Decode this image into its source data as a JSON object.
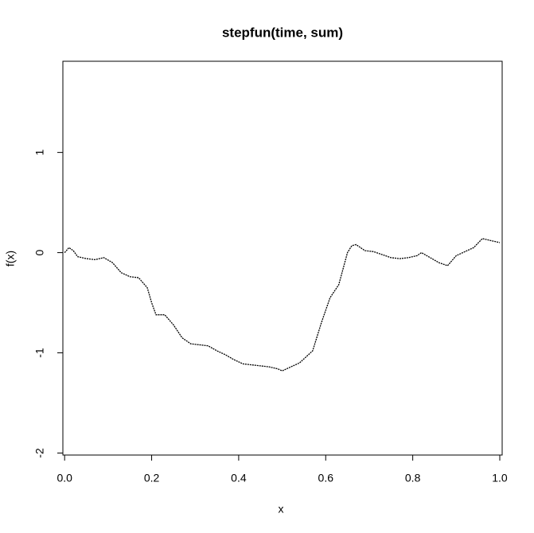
{
  "chart_data": {
    "type": "line",
    "title": "stepfun(time, sum)",
    "x_label": "x",
    "y_label": "f(x)",
    "x": [
      0.0,
      0.01,
      0.02,
      0.03,
      0.05,
      0.07,
      0.09,
      0.11,
      0.13,
      0.15,
      0.17,
      0.19,
      0.2,
      0.21,
      0.23,
      0.25,
      0.27,
      0.29,
      0.31,
      0.33,
      0.35,
      0.37,
      0.39,
      0.41,
      0.43,
      0.45,
      0.47,
      0.49,
      0.5,
      0.52,
      0.54,
      0.56,
      0.57,
      0.59,
      0.61,
      0.63,
      0.65,
      0.66,
      0.67,
      0.69,
      0.71,
      0.73,
      0.75,
      0.77,
      0.79,
      0.81,
      0.82,
      0.84,
      0.86,
      0.88,
      0.9,
      0.92,
      0.94,
      0.96,
      0.98,
      1.0
    ],
    "series": [
      {
        "color": "#000000",
        "values": [
          0,
          0.05,
          0.02,
          -0.04,
          -0.06,
          -0.07,
          -0.05,
          -0.1,
          -0.2,
          -0.24,
          -0.25,
          -0.35,
          -0.5,
          -0.62,
          -0.62,
          -0.72,
          -0.85,
          -0.91,
          -0.92,
          -0.93,
          -0.98,
          -1.02,
          -1.07,
          -1.11,
          -1.12,
          -1.13,
          -1.14,
          -1.16,
          -1.18,
          -1.14,
          -1.1,
          -1.02,
          -0.98,
          -0.7,
          -0.45,
          -0.32,
          0.0,
          0.07,
          0.08,
          0.02,
          0.01,
          -0.02,
          -0.05,
          -0.06,
          -0.05,
          -0.03,
          0.0,
          -0.05,
          -0.1,
          -0.13,
          -0.03,
          0.01,
          0.05,
          0.14,
          0.12,
          0.1
        ]
      }
    ],
    "xlim": [
      -0.004,
      1.0055
    ],
    "ylim": [
      -2.02,
      1.91
    ],
    "xticks": [
      {
        "value": 0,
        "label": "0.0"
      },
      {
        "value": 0.2,
        "label": "0.2"
      },
      {
        "value": 0.4,
        "label": "0.4"
      },
      {
        "value": 0.6,
        "label": "0.6"
      },
      {
        "value": 0.8,
        "label": "0.8"
      },
      {
        "value": 1,
        "label": "1.0"
      }
    ],
    "yticks": [
      -2,
      -1,
      0,
      1
    ],
    "grid": false
  }
}
